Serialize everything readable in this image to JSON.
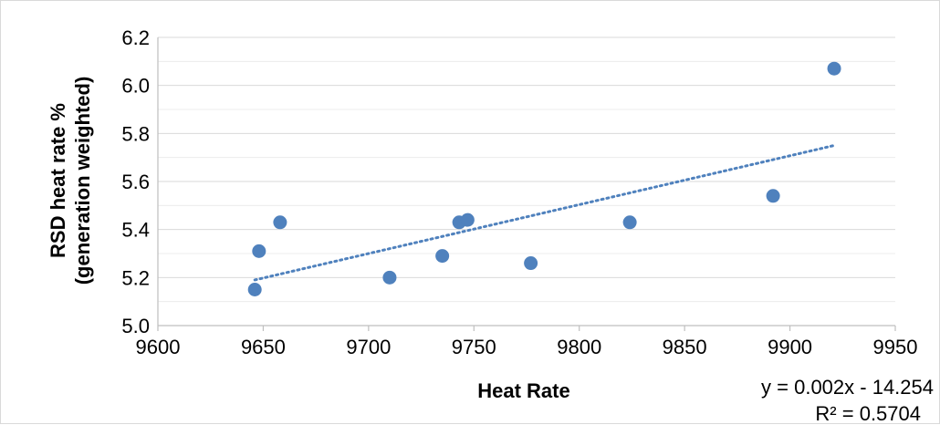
{
  "chart_data": {
    "type": "scatter",
    "title": "",
    "xlabel": "Heat Rate",
    "ylabel_lines": [
      "RSD heat rate %",
      "(generation weighted)"
    ],
    "xlim": [
      9600,
      9950
    ],
    "ylim": [
      5.0,
      6.2
    ],
    "x_ticks": [
      9600,
      9650,
      9700,
      9750,
      9800,
      9850,
      9900,
      9950
    ],
    "y_ticks": [
      5.0,
      5.2,
      5.4,
      5.6,
      5.8,
      6.0,
      6.2
    ],
    "grid": true,
    "points": [
      {
        "x": 9646,
        "y": 5.15
      },
      {
        "x": 9648,
        "y": 5.31
      },
      {
        "x": 9658,
        "y": 5.43
      },
      {
        "x": 9710,
        "y": 5.2
      },
      {
        "x": 9735,
        "y": 5.29
      },
      {
        "x": 9743,
        "y": 5.43
      },
      {
        "x": 9747,
        "y": 5.44
      },
      {
        "x": 9777,
        "y": 5.26
      },
      {
        "x": 9824,
        "y": 5.43
      },
      {
        "x": 9892,
        "y": 5.54
      },
      {
        "x": 9921,
        "y": 6.07
      }
    ],
    "trendline": {
      "type": "linear",
      "style": "dotted",
      "equation": "y = 0.002x - 14.254",
      "r_squared": "R² = 0.5704",
      "start": {
        "x": 9646,
        "y": 5.19
      },
      "end": {
        "x": 9921,
        "y": 5.75
      }
    },
    "colors": {
      "marker": "#4f81bd",
      "trendline": "#4f81bd",
      "grid": "#d9d9d9",
      "axis": "#bfbfbf"
    }
  }
}
